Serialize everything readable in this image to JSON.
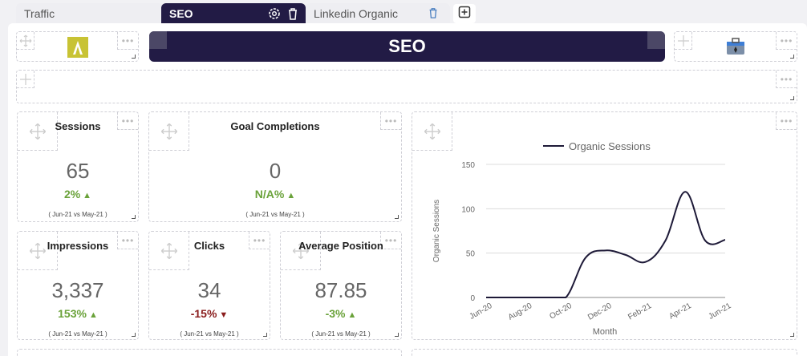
{
  "tabs": [
    {
      "label": "Traffic"
    },
    {
      "label": "SEO"
    },
    {
      "label": "Linkedin Organic"
    }
  ],
  "header": {
    "title": "SEO"
  },
  "kpis": {
    "sessions": {
      "title": "Sessions",
      "value": "65",
      "change": "2%",
      "direction": "up",
      "period": "( Jun-21 vs May-21 )"
    },
    "goal_completions": {
      "title": "Goal Completions",
      "value": "0",
      "change": "N/A%",
      "direction": "up",
      "period": "( Jun-21 vs May-21 )"
    },
    "impressions": {
      "title": "Impressions",
      "value": "3,337",
      "change": "153%",
      "direction": "up",
      "period": "( Jun-21 vs May-21 )"
    },
    "clicks": {
      "title": "Clicks",
      "value": "34",
      "change": "-15%",
      "direction": "down",
      "period": "( Jun-21 vs May-21 )"
    },
    "average_position": {
      "title": "Average Position",
      "value": "87.85",
      "change": "-3%",
      "direction": "up",
      "period": "( Jun-21 vs May-21 )"
    }
  },
  "colors": {
    "brand": "#221b45",
    "up": "#6aa23a",
    "down": "#8a1c1c",
    "logo": "#c8c334"
  },
  "chart_data": {
    "type": "line",
    "legend": "Organic Sessions",
    "legend_position": "top",
    "xlabel": "Month",
    "ylabel": "Organic Sessions",
    "ylim": [
      0,
      150
    ],
    "yticks": [
      0,
      50,
      100,
      150
    ],
    "x": [
      "Jun-20",
      "Jul-20",
      "Aug-20",
      "Sep-20",
      "Oct-20",
      "Nov-20",
      "Dec-20",
      "Jan-21",
      "Feb-21",
      "Mar-21",
      "Apr-21",
      "May-21",
      "Jun-21"
    ],
    "xtick_labels": [
      "Jun-20",
      "Aug-20",
      "Oct-20",
      "Dec-20",
      "Feb-21",
      "Apr-21",
      "Jun-21"
    ],
    "series": [
      {
        "name": "Organic Sessions",
        "values": [
          0,
          0,
          0,
          0,
          0,
          45,
          53,
          48,
          40,
          64,
          119,
          64,
          65
        ]
      }
    ],
    "grid": true
  }
}
